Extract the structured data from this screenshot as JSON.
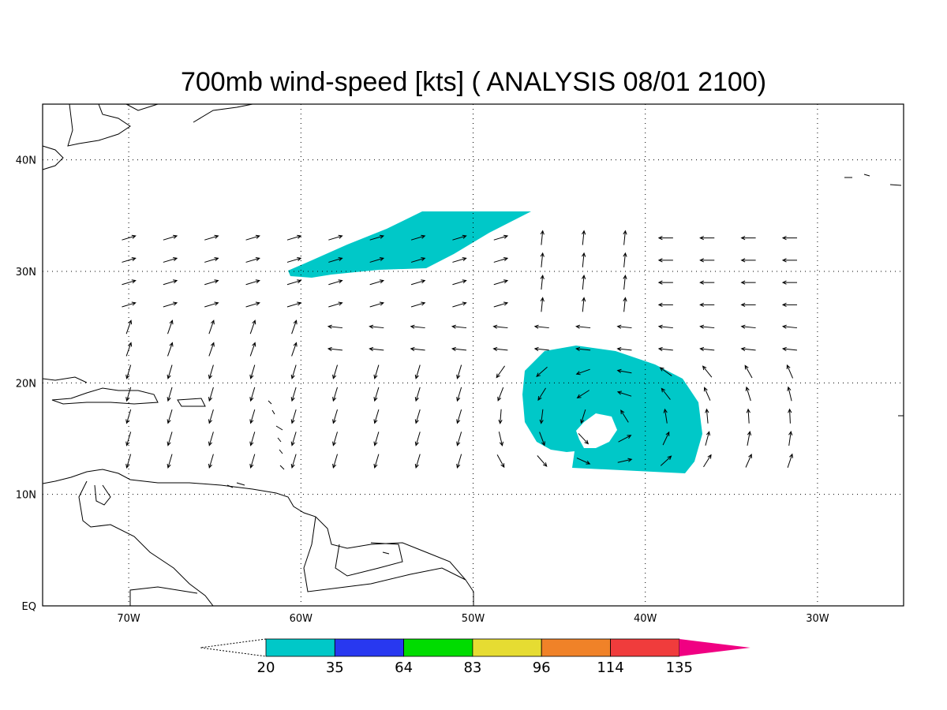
{
  "title": "700mb wind-speed [kts] ( ANALYSIS 08/01 2100)",
  "map": {
    "lon_labels": [
      "70W",
      "60W",
      "50W",
      "40W",
      "30W"
    ],
    "lat_labels": [
      "40N",
      "30N",
      "20N",
      "10N",
      "EQ"
    ]
  },
  "colorbar": {
    "levels": [
      20,
      35,
      64,
      83,
      96,
      114,
      135
    ],
    "colors": [
      "#00c8c8",
      "#2838f0",
      "#00dc00",
      "#e6dc32",
      "#f08228",
      "#f03c3c",
      "#f00082"
    ]
  }
}
